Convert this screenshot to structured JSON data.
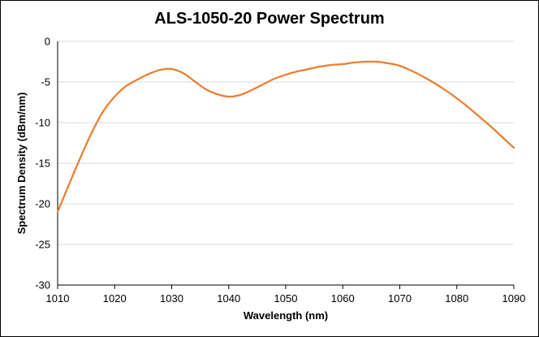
{
  "chart_data": {
    "type": "line",
    "title": "ALS-1050-20 Power Spectrum",
    "xlabel": "Wavelength (nm)",
    "ylabel": "Spectrum Density (dBm/nm)",
    "xlim": [
      1010,
      1090
    ],
    "ylim": [
      -30,
      0
    ],
    "x_ticks": [
      "1010",
      "1020",
      "1030",
      "1040",
      "1050",
      "1060",
      "1070",
      "1080",
      "1090"
    ],
    "y_ticks": [
      "0",
      "-5",
      "-10",
      "-15",
      "-20",
      "-25",
      "-30"
    ],
    "grid": "horizontal",
    "legend": "none",
    "line_color": "#ED7D31",
    "series": [
      {
        "x": [
          1010,
          1012,
          1014,
          1016,
          1018,
          1020,
          1022,
          1024,
          1026,
          1028,
          1030,
          1032,
          1034,
          1036,
          1038,
          1040,
          1042,
          1044,
          1046,
          1048,
          1050,
          1052,
          1054,
          1056,
          1058,
          1060,
          1062,
          1064,
          1066,
          1068,
          1070,
          1072,
          1074,
          1076,
          1078,
          1080,
          1082,
          1084,
          1086,
          1088,
          1090
        ],
        "y": [
          -21.0,
          -17.6,
          -14.3,
          -11.2,
          -8.6,
          -6.8,
          -5.5,
          -4.7,
          -4.0,
          -3.5,
          -3.4,
          -3.9,
          -4.9,
          -5.9,
          -6.5,
          -6.8,
          -6.6,
          -6.0,
          -5.3,
          -4.6,
          -4.1,
          -3.7,
          -3.4,
          -3.1,
          -2.9,
          -2.8,
          -2.6,
          -2.5,
          -2.5,
          -2.7,
          -3.0,
          -3.6,
          -4.3,
          -5.1,
          -6.0,
          -7.0,
          -8.1,
          -9.3,
          -10.5,
          -11.8,
          -13.1
        ]
      }
    ]
  }
}
